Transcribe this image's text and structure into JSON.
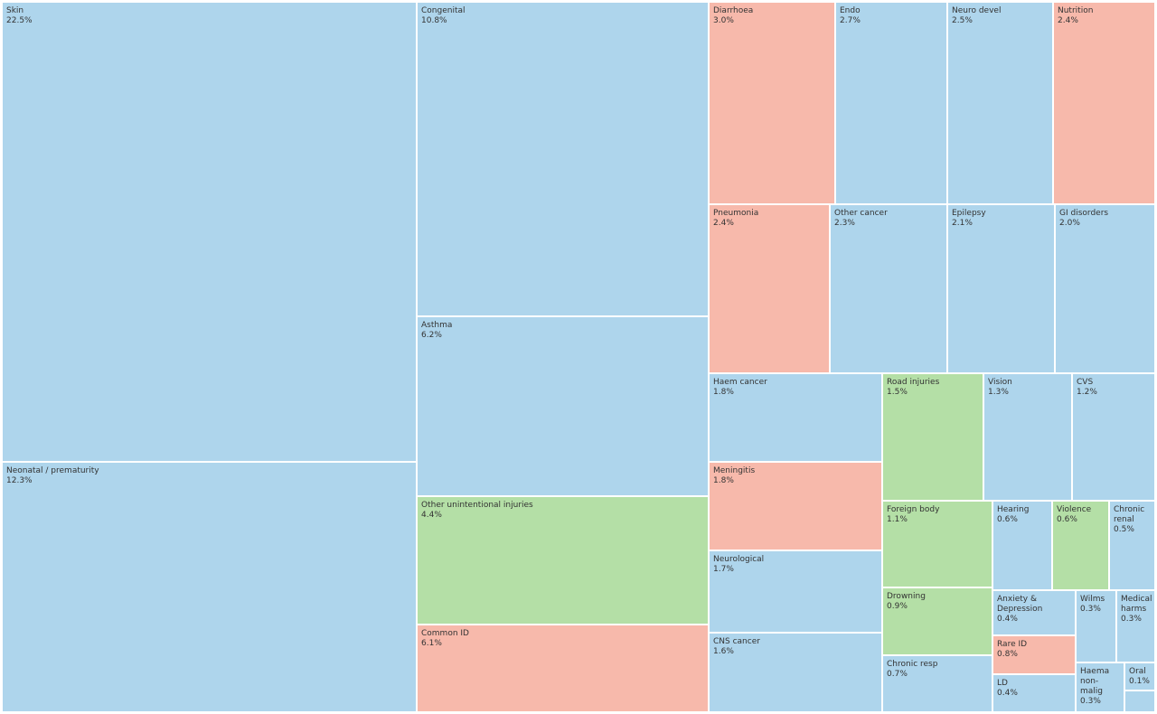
{
  "colors": {
    "non_communicable": "#aed5ec",
    "communicable": "#f7b9ab",
    "injuries": "#b4dfa6"
  },
  "chart_data": {
    "type": "treemap",
    "title": "",
    "items": [
      {
        "label": "Skin",
        "value": 22.5,
        "display": "22.5%",
        "group": "non_communicable"
      },
      {
        "label": "Neonatal / prematurity",
        "value": 12.3,
        "display": "12.3%",
        "group": "non_communicable"
      },
      {
        "label": "Congenital",
        "value": 10.8,
        "display": "10.8%",
        "group": "non_communicable"
      },
      {
        "label": "Asthma",
        "value": 6.2,
        "display": "6.2%",
        "group": "non_communicable"
      },
      {
        "label": "Other unintentional injuries",
        "value": 4.4,
        "display": "4.4%",
        "group": "injuries"
      },
      {
        "label": "Common ID",
        "value": 6.1,
        "display": "6.1%",
        "group": "communicable"
      },
      {
        "label": "Diarrhoea",
        "value": 3.0,
        "display": "3.0%",
        "group": "communicable"
      },
      {
        "label": "Endo",
        "value": 2.7,
        "display": "2.7%",
        "group": "non_communicable"
      },
      {
        "label": "Neuro devel",
        "value": 2.5,
        "display": "2.5%",
        "group": "non_communicable"
      },
      {
        "label": "Nutrition",
        "value": 2.4,
        "display": "2.4%",
        "group": "communicable"
      },
      {
        "label": "Pneumonia",
        "value": 2.4,
        "display": "2.4%",
        "group": "communicable"
      },
      {
        "label": "Other cancer",
        "value": 2.3,
        "display": "2.3%",
        "group": "non_communicable"
      },
      {
        "label": "Epilepsy",
        "value": 2.1,
        "display": "2.1%",
        "group": "non_communicable"
      },
      {
        "label": "GI disorders",
        "value": 2.0,
        "display": "2.0%",
        "group": "non_communicable"
      },
      {
        "label": "Haem cancer",
        "value": 1.8,
        "display": "1.8%",
        "group": "non_communicable"
      },
      {
        "label": "Road injuries",
        "value": 1.5,
        "display": "1.5%",
        "group": "injuries"
      },
      {
        "label": "Vision",
        "value": 1.3,
        "display": "1.3%",
        "group": "non_communicable"
      },
      {
        "label": "CVS",
        "value": 1.2,
        "display": "1.2%",
        "group": "non_communicable"
      },
      {
        "label": "Meningitis",
        "value": 1.8,
        "display": "1.8%",
        "group": "communicable"
      },
      {
        "label": "Neurological",
        "value": 1.7,
        "display": "1.7%",
        "group": "non_communicable"
      },
      {
        "label": "CNS cancer",
        "value": 1.6,
        "display": "1.6%",
        "group": "non_communicable"
      },
      {
        "label": "Foreign body",
        "value": 1.1,
        "display": "1.1%",
        "group": "injuries"
      },
      {
        "label": "Drowning",
        "value": 0.9,
        "display": "0.9%",
        "group": "injuries"
      },
      {
        "label": "Chronic resp",
        "value": 0.7,
        "display": "0.7%",
        "group": "non_communicable"
      },
      {
        "label": "Hearing",
        "value": 0.6,
        "display": "0.6%",
        "group": "non_communicable"
      },
      {
        "label": "Violence",
        "value": 0.6,
        "display": "0.6%",
        "group": "injuries"
      },
      {
        "label": "Chronic renal",
        "value": 0.5,
        "display": "0.5%",
        "group": "non_communicable"
      },
      {
        "label": "Anxiety & Depression",
        "value": 0.4,
        "display": "0.4%",
        "group": "non_communicable"
      },
      {
        "label": "Wilms",
        "value": 0.3,
        "display": "0.3%",
        "group": "non_communicable"
      },
      {
        "label": "Medical harms",
        "value": 0.3,
        "display": "0.3%",
        "group": "non_communicable"
      },
      {
        "label": "Rare ID",
        "value": 0.8,
        "display": "0.8%",
        "group": "communicable"
      },
      {
        "label": "LD",
        "value": 0.4,
        "display": "0.4%",
        "group": "non_communicable"
      },
      {
        "label": "Haema non-malig",
        "value": 0.3,
        "display": "0.3%",
        "group": "non_communicable"
      },
      {
        "label": "Oral",
        "value": 0.1,
        "display": "0.1%",
        "group": "non_communicable"
      },
      {
        "label": "",
        "value": null,
        "display": "",
        "group": "non_communicable"
      }
    ]
  }
}
